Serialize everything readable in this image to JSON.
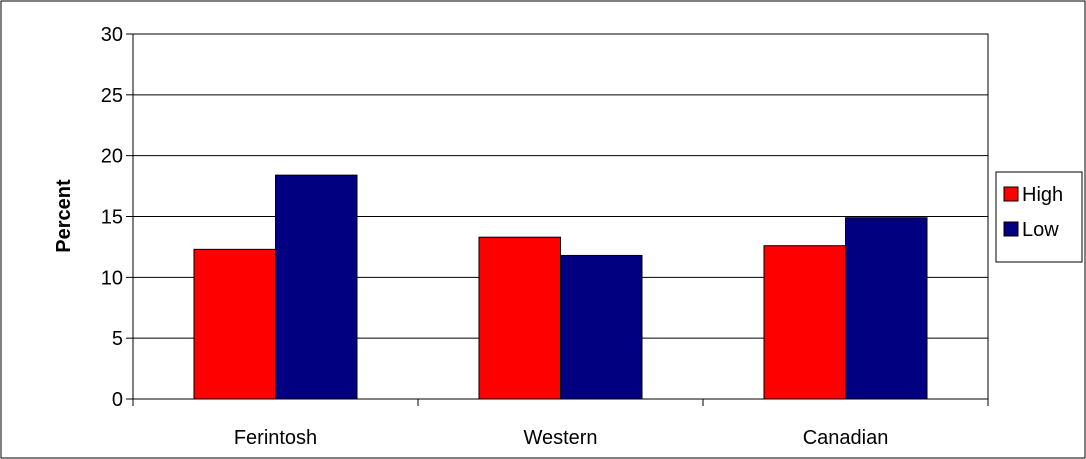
{
  "chart_data": {
    "type": "bar",
    "title": "",
    "xlabel": "",
    "ylabel": "Percent",
    "ylim": [
      0,
      30
    ],
    "yticks": [
      0,
      5,
      10,
      15,
      20,
      25,
      30
    ],
    "grid": true,
    "legend_position": "right",
    "categories": [
      "Ferintosh",
      "Western",
      "Canadian"
    ],
    "series": [
      {
        "name": "High",
        "color": "#ff0000",
        "values": [
          12.3,
          13.3,
          12.6
        ]
      },
      {
        "name": "Low",
        "color": "#000080",
        "values": [
          18.4,
          11.8,
          14.9
        ]
      }
    ]
  }
}
